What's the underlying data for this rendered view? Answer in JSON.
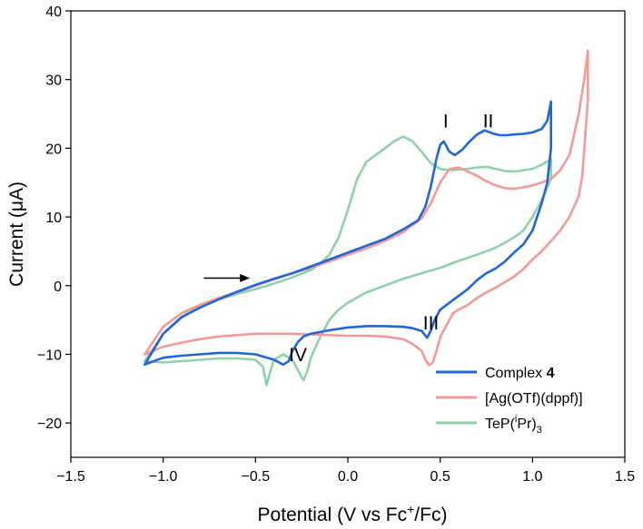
{
  "chart_data": {
    "type": "line",
    "title": "",
    "xlabel": "Potential (V vs Fc⁺/Fc)",
    "xlabel_parts": {
      "main": "Potential (V vs Fc",
      "sup": "+",
      "tail": "/Fc)"
    },
    "ylabel": "Current (μA)",
    "xlim": [
      -1.5,
      1.5
    ],
    "ylim": [
      -25,
      40
    ],
    "xticks": [
      -1.5,
      -1.0,
      -0.5,
      0.0,
      0.5,
      1.0,
      1.5
    ],
    "xtick_labels": [
      "−1.5",
      "−1.0",
      "−0.5",
      "0.0",
      "0.5",
      "1.0",
      "1.5"
    ],
    "yticks": [
      -20,
      -10,
      0,
      10,
      20,
      30,
      40
    ],
    "ytick_labels": [
      "−20",
      "−10",
      "0",
      "10",
      "20",
      "30",
      "40"
    ],
    "grid": false,
    "legend_position": "bottom-right",
    "legend": [
      {
        "prefix": "Complex ",
        "bold": "4",
        "color": "#2166d6"
      },
      {
        "text": "[Ag(OTf)(dppf)]",
        "color": "#f29a96"
      },
      {
        "prefix": "TeP(",
        "sup": "i",
        "middle": "Pr)",
        "sub": "3",
        "color": "#8fd1aa"
      }
    ],
    "annotations": [
      {
        "text": "I",
        "x": 0.53,
        "y": 23.0
      },
      {
        "text": "II",
        "x": 0.76,
        "y": 23.0
      },
      {
        "text": "III",
        "x": 0.45,
        "y": -6.4
      },
      {
        "text": "IV",
        "x": -0.27,
        "y": -11.0
      }
    ],
    "scan_arrow": {
      "x_start": -0.78,
      "x_end": -0.53,
      "y": 1.1
    },
    "series": [
      {
        "name": "Complex 4",
        "color": "#2166d6",
        "x": [
          -1.1,
          -1.0,
          -0.9,
          -0.8,
          -0.7,
          -0.6,
          -0.5,
          -0.4,
          -0.3,
          -0.2,
          -0.1,
          0.0,
          0.1,
          0.2,
          0.3,
          0.38,
          0.42,
          0.45,
          0.48,
          0.5,
          0.52,
          0.55,
          0.58,
          0.62,
          0.66,
          0.7,
          0.74,
          0.78,
          0.82,
          0.86,
          0.9,
          0.95,
          1.0,
          1.05,
          1.08,
          1.1,
          1.1,
          1.08,
          1.05,
          1.0,
          0.95,
          0.9,
          0.85,
          0.8,
          0.75,
          0.7,
          0.65,
          0.6,
          0.55,
          0.5,
          0.47,
          0.45,
          0.43,
          0.4,
          0.35,
          0.3,
          0.2,
          0.1,
          0.0,
          -0.1,
          -0.2,
          -0.24,
          -0.27,
          -0.3,
          -0.32,
          -0.35,
          -0.4,
          -0.5,
          -0.6,
          -0.7,
          -0.8,
          -0.9,
          -1.0,
          -1.1
        ],
        "y": [
          -11.5,
          -7.0,
          -4.6,
          -3.2,
          -2.0,
          -0.9,
          0.1,
          1.0,
          1.8,
          2.8,
          3.8,
          4.8,
          5.8,
          6.8,
          8.2,
          9.5,
          11.5,
          14.5,
          18.5,
          20.5,
          21.0,
          19.5,
          19.0,
          19.8,
          21.0,
          22.0,
          22.6,
          22.2,
          21.9,
          21.9,
          22.0,
          22.1,
          22.3,
          22.8,
          24.0,
          26.8,
          20.0,
          15.0,
          12.0,
          8.0,
          6.0,
          4.8,
          3.5,
          2.5,
          1.8,
          0.8,
          -0.5,
          -1.5,
          -2.5,
          -3.5,
          -5.0,
          -6.5,
          -7.6,
          -6.6,
          -6.2,
          -6.0,
          -5.9,
          -5.9,
          -6.1,
          -6.5,
          -7.0,
          -7.4,
          -8.2,
          -9.5,
          -11.0,
          -11.5,
          -10.8,
          -10.0,
          -9.8,
          -9.8,
          -10.0,
          -10.2,
          -10.5,
          -11.5
        ]
      },
      {
        "name": "[Ag(OTf)(dppf)]",
        "color": "#f29a96",
        "x": [
          -1.1,
          -1.0,
          -0.9,
          -0.8,
          -0.7,
          -0.6,
          -0.5,
          -0.4,
          -0.3,
          -0.2,
          -0.1,
          0.0,
          0.1,
          0.2,
          0.3,
          0.4,
          0.45,
          0.5,
          0.55,
          0.6,
          0.65,
          0.7,
          0.75,
          0.8,
          0.85,
          0.9,
          0.95,
          1.0,
          1.05,
          1.1,
          1.15,
          1.2,
          1.25,
          1.28,
          1.3,
          1.3,
          1.27,
          1.25,
          1.2,
          1.15,
          1.1,
          1.05,
          1.0,
          0.95,
          0.9,
          0.85,
          0.8,
          0.75,
          0.7,
          0.65,
          0.6,
          0.57,
          0.55,
          0.5,
          0.48,
          0.46,
          0.44,
          0.42,
          0.4,
          0.35,
          0.3,
          0.2,
          0.1,
          0.0,
          -0.1,
          -0.2,
          -0.3,
          -0.4,
          -0.5,
          -0.6,
          -0.7,
          -0.8,
          -0.9,
          -1.0,
          -1.1
        ],
        "y": [
          -10.0,
          -6.0,
          -4.0,
          -2.8,
          -1.8,
          -0.9,
          0.0,
          0.9,
          1.8,
          2.6,
          3.5,
          4.5,
          5.4,
          6.5,
          7.8,
          9.8,
          12.0,
          15.0,
          17.0,
          17.2,
          16.6,
          16.0,
          15.2,
          14.6,
          14.2,
          14.1,
          14.3,
          14.6,
          15.0,
          15.5,
          16.8,
          19.0,
          25.0,
          30.0,
          34.2,
          27.0,
          16.0,
          13.0,
          10.0,
          8.0,
          6.5,
          5.0,
          3.8,
          2.4,
          1.3,
          0.5,
          -0.3,
          -1.0,
          -1.8,
          -2.8,
          -3.5,
          -4.0,
          -5.0,
          -7.5,
          -9.5,
          -11.2,
          -11.6,
          -10.8,
          -9.5,
          -8.5,
          -7.8,
          -7.4,
          -7.3,
          -7.3,
          -7.2,
          -7.1,
          -7.0,
          -7.0,
          -7.0,
          -7.2,
          -7.4,
          -7.8,
          -8.3,
          -8.9,
          -10.0
        ]
      },
      {
        "name": "TeP(iPr)3",
        "color": "#8fd1aa",
        "x": [
          -1.1,
          -1.0,
          -0.9,
          -0.8,
          -0.7,
          -0.6,
          -0.5,
          -0.4,
          -0.3,
          -0.2,
          -0.15,
          -0.1,
          -0.05,
          0.0,
          0.05,
          0.1,
          0.15,
          0.2,
          0.25,
          0.3,
          0.35,
          0.4,
          0.45,
          0.5,
          0.55,
          0.6,
          0.65,
          0.7,
          0.75,
          0.8,
          0.85,
          0.9,
          0.95,
          1.0,
          1.05,
          1.1,
          1.1,
          1.05,
          1.0,
          0.95,
          0.9,
          0.8,
          0.7,
          0.6,
          0.5,
          0.4,
          0.3,
          0.2,
          0.1,
          0.0,
          -0.05,
          -0.1,
          -0.15,
          -0.2,
          -0.22,
          -0.24,
          -0.26,
          -0.3,
          -0.35,
          -0.4,
          -0.42,
          -0.44,
          -0.46,
          -0.5,
          -0.6,
          -0.7,
          -0.8,
          -0.9,
          -1.0,
          -1.1
        ],
        "y": [
          -11.0,
          -7.0,
          -4.5,
          -3.0,
          -2.0,
          -1.2,
          -0.5,
          0.3,
          1.2,
          2.3,
          3.2,
          4.5,
          7.0,
          11.0,
          15.5,
          18.0,
          19.0,
          20.0,
          21.0,
          21.7,
          21.0,
          19.5,
          17.8,
          17.0,
          16.8,
          16.9,
          17.0,
          17.2,
          17.3,
          17.0,
          16.7,
          16.6,
          16.8,
          17.0,
          17.6,
          18.4,
          15.5,
          12.5,
          10.0,
          8.0,
          7.0,
          5.5,
          4.5,
          3.6,
          2.6,
          1.8,
          1.0,
          0.0,
          -1.0,
          -2.5,
          -3.5,
          -5.0,
          -7.5,
          -10.5,
          -12.5,
          -13.8,
          -12.8,
          -10.8,
          -10.0,
          -10.8,
          -12.5,
          -14.5,
          -11.8,
          -10.8,
          -10.6,
          -10.6,
          -10.8,
          -11.0,
          -11.2,
          -11.0
        ]
      }
    ]
  }
}
